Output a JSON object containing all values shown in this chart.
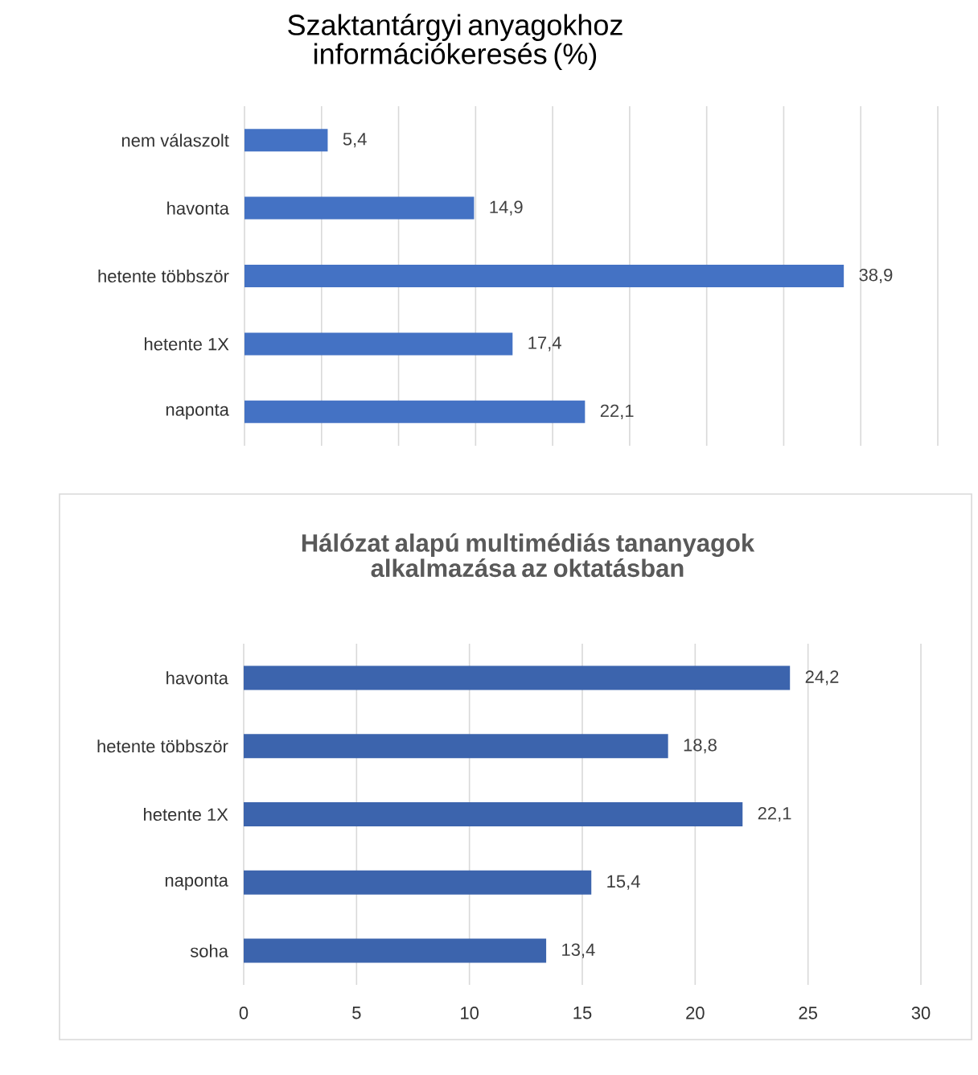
{
  "chart_data": [
    {
      "type": "bar",
      "orientation": "horizontal",
      "title": "Szaktantárgyi anyagokhoz információkeresés (%)",
      "categories": [
        "nem válaszolt",
        "havonta",
        "hetente többször",
        "hetente 1X",
        "naponta"
      ],
      "values": [
        5.4,
        14.9,
        38.9,
        17.4,
        22.1
      ],
      "value_labels": [
        "5,4",
        "14,9",
        "38,9",
        "17,4",
        "22,1"
      ],
      "color": "#4472c4",
      "xlim": [
        0,
        45
      ],
      "xticks": [
        {
          "value": 0,
          "label": null
        },
        {
          "value": 5,
          "label": null
        },
        {
          "value": 10,
          "label": null
        },
        {
          "value": 15,
          "label": null
        },
        {
          "value": 20,
          "label": null
        },
        {
          "value": 25,
          "label": null
        },
        {
          "value": 30,
          "label": null
        },
        {
          "value": 35,
          "label": null
        },
        {
          "value": 40,
          "label": null
        },
        {
          "value": 45,
          "label": null
        }
      ],
      "tick_labels": "y",
      "grid": "x"
    },
    {
      "type": "bar",
      "orientation": "horizontal",
      "title": "Hálózat alapú multimédiás tananyagok alkalmazása az oktatásban",
      "categories": [
        "havonta",
        "hetente többször",
        "hetente 1X",
        "naponta",
        "soha"
      ],
      "values": [
        24.2,
        18.8,
        22.1,
        15.4,
        13.4
      ],
      "value_labels": [
        "24,2",
        "18,8",
        "22,1",
        "15,4",
        "13,4"
      ],
      "color": "#3c64ad",
      "xlim": [
        0,
        30
      ],
      "xticks": [
        0,
        5,
        10,
        15,
        20,
        25,
        30
      ],
      "grid": "x"
    }
  ]
}
